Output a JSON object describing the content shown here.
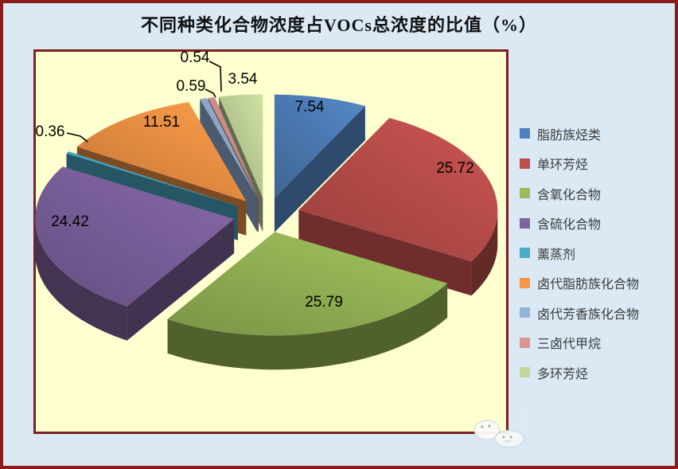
{
  "chart_data": {
    "type": "pie",
    "style": "3d-exploded",
    "title": "不同种类化合物浓度占VOCs总浓度的比值（%）",
    "unit": "%",
    "categories": [
      "脂肪族烃类",
      "单环芳烃",
      "含氧化合物",
      "含硫化合物",
      "薰蒸剂",
      "卤代脂肪族化合物",
      "卤代芳香族化合物",
      "三卤代甲烷",
      "多环芳烃"
    ],
    "values": [
      7.54,
      25.72,
      25.79,
      24.42,
      0.36,
      11.51,
      0.59,
      0.54,
      3.54
    ],
    "labels": [
      "7.54",
      "25.72",
      "25.79",
      "24.42",
      "0.36",
      "11.51",
      "0.59",
      "0.54",
      "3.54"
    ],
    "colors": [
      "#4F81BD",
      "#C0504D",
      "#9BBB59",
      "#8064A2",
      "#4BACC6",
      "#F79646",
      "#95B3D7",
      "#D99694",
      "#C3D69B"
    ],
    "legend_position": "right",
    "start_angle": -90,
    "direction": "clockwise"
  },
  "colors": {
    "page_background": "#DAE9F4",
    "outer_border": "#8C1C1C",
    "plot_background": "#FFFFCF",
    "plot_border": "#7E2020",
    "title_text": "#111111",
    "legend_text": "#3D3D3D",
    "label_text": "#000000"
  },
  "watermark": {
    "icon": "cloud-mascots-watermark"
  }
}
